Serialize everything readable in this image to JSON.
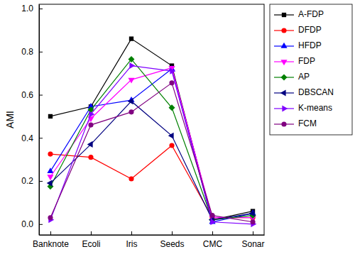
{
  "chart_data": {
    "type": "line",
    "y_label": "AMI",
    "categories": [
      "Banknote",
      "Ecoli",
      "Iris",
      "Seeds",
      "CMC",
      "Sonar"
    ],
    "ylim": [
      -0.05,
      1.02
    ],
    "yticks": [
      {
        "value": 0,
        "label": "0.0"
      },
      {
        "value": 0.2,
        "label": "0.2"
      },
      {
        "value": 0.4,
        "label": "0.4"
      },
      {
        "value": 0.6,
        "label": "0.6"
      },
      {
        "value": 0.8,
        "label": "0.8"
      },
      {
        "value": 1,
        "label": "1.0"
      }
    ],
    "grid": false,
    "legend": "upper right",
    "series": [
      {
        "name": "A-FDP",
        "color": "#000000",
        "marker": "square",
        "values": [
          0.5,
          0.545,
          0.86,
          0.735,
          0.02,
          0.06
        ]
      },
      {
        "name": "DFDP",
        "color": "#ff0000",
        "marker": "circle",
        "values": [
          0.325,
          0.31,
          0.21,
          0.365,
          0.03,
          0.03
        ]
      },
      {
        "name": "HFDP",
        "color": "#0000ff",
        "marker": "triangle-up",
        "values": [
          0.245,
          0.545,
          0.575,
          0.72,
          0.01,
          0.05
        ]
      },
      {
        "name": "FDP",
        "color": "#ff00ff",
        "marker": "triangle-down",
        "values": [
          0.22,
          0.49,
          0.67,
          0.725,
          0.03,
          0.03
        ]
      },
      {
        "name": "AP",
        "color": "#008000",
        "marker": "diamond",
        "values": [
          0.175,
          0.53,
          0.765,
          0.54,
          0.02,
          0.04
        ]
      },
      {
        "name": "DBSCAN",
        "color": "#000080",
        "marker": "triangle-left",
        "values": [
          0.19,
          0.37,
          0.57,
          0.41,
          0.02,
          0.05
        ]
      },
      {
        "name": "K-means",
        "color": "#7f00ff",
        "marker": "triangle-right",
        "values": [
          0.02,
          0.51,
          0.735,
          0.71,
          0.01,
          0.0
        ]
      },
      {
        "name": "FCM",
        "color": "#800080",
        "marker": "circle",
        "values": [
          0.03,
          0.46,
          0.52,
          0.655,
          0.04,
          0.01
        ]
      }
    ]
  }
}
